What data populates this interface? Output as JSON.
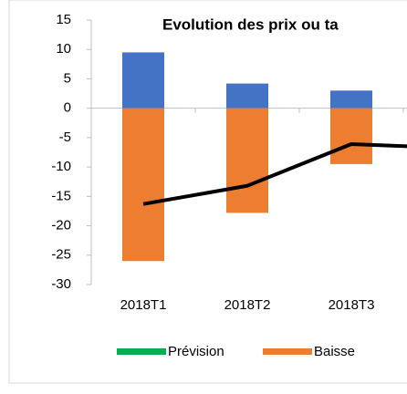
{
  "chart_data": {
    "type": "bar",
    "title": "Evolution des prix ou ta",
    "categories": [
      "2018T1",
      "2018T2",
      "2018T3",
      null
    ],
    "series": [
      {
        "type": "bar",
        "color": "#4472c4",
        "values": [
          9.5,
          4.2,
          3.0,
          null
        ]
      },
      {
        "type": "bar",
        "name": "Baisse",
        "color": "#ed7d31",
        "values": [
          -26,
          -17.8,
          -9.5,
          null
        ]
      },
      {
        "type": "line",
        "color": "#000000",
        "values": [
          -16.3,
          -13.2,
          -6.1,
          -6.8
        ]
      },
      {
        "type": "bar",
        "name": "Prévision",
        "color": "#00b050",
        "values": [
          null,
          null,
          null,
          null
        ]
      }
    ],
    "ylim": [
      -30,
      15
    ],
    "yticks": [
      -30,
      -25,
      -20,
      -15,
      -10,
      -5,
      0,
      5,
      10,
      15
    ]
  }
}
